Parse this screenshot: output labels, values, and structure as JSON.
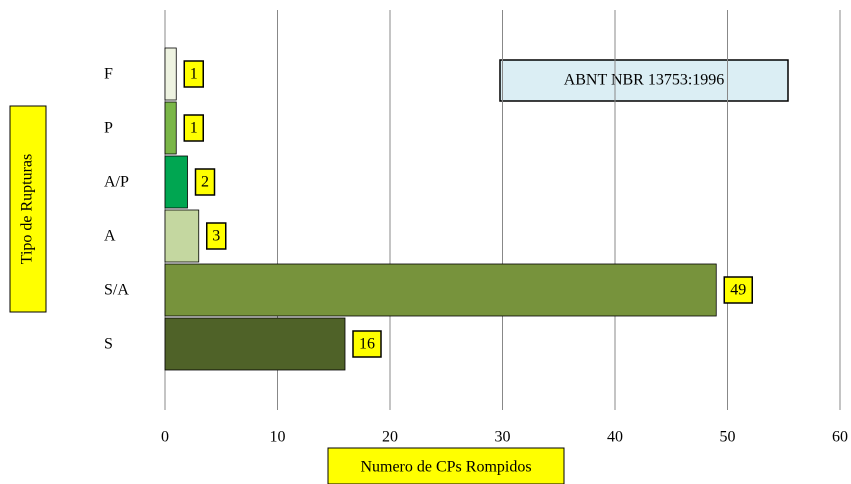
{
  "chart_data": {
    "type": "bar",
    "orientation": "horizontal",
    "x_label": "Numero de CPs Rompidos",
    "y_label": "Tipo de Rupturas",
    "annotation": "ABNT NBR 13753:1996",
    "categories": [
      "F",
      "P",
      "A/P",
      "A",
      "S/A",
      "S"
    ],
    "values": [
      1,
      1,
      2,
      3,
      49,
      16
    ],
    "colors": [
      "#eef3e1",
      "#7ab648",
      "#00a651",
      "#c4d7a0",
      "#77933c",
      "#4f6228"
    ],
    "xlim": [
      0,
      60
    ],
    "xticks": [
      0,
      10,
      20,
      30,
      40,
      50,
      60
    ],
    "grid": true
  }
}
